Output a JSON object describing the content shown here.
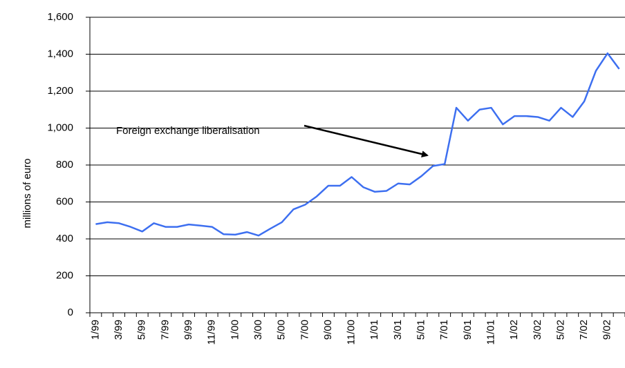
{
  "chart_data": {
    "type": "line",
    "y_label": "millions of euro",
    "annotation": "Foreign exchange liberalisation",
    "categories": [
      "1/99",
      null,
      "3/99",
      null,
      "5/99",
      null,
      "7/99",
      null,
      "9/99",
      null,
      "11/99",
      null,
      "1/00",
      null,
      "3/00",
      null,
      "5/00",
      null,
      "7/00",
      null,
      "9/00",
      null,
      "11/00",
      null,
      "1/01",
      null,
      "3/01",
      null,
      "5/01",
      null,
      "7/01",
      null,
      "9/01",
      null,
      "11/01",
      null,
      "1/02",
      null,
      "3/02",
      null,
      "5/02",
      null,
      "7/02",
      null,
      "9/02",
      null
    ],
    "values": [
      480,
      490,
      485,
      465,
      440,
      485,
      465,
      465,
      478,
      472,
      465,
      425,
      423,
      437,
      418,
      455,
      490,
      560,
      585,
      630,
      688,
      688,
      735,
      680,
      655,
      660,
      700,
      695,
      740,
      795,
      805,
      1110,
      1040,
      1100,
      1110,
      1020,
      1065,
      1065,
      1060,
      1040,
      1110,
      1060,
      1145,
      1310,
      1405,
      1320
    ],
    "color": "#3d6ff0",
    "ylim": [
      0,
      1600
    ],
    "yticks": [
      0,
      200,
      400,
      600,
      800,
      {
        "value": 1000,
        "label": "1,000"
      },
      {
        "value": 1200,
        "label": "1,200"
      },
      {
        "value": 1400,
        "label": "1,400"
      },
      {
        "value": 1600,
        "label": "1,600"
      }
    ],
    "grid": true
  }
}
